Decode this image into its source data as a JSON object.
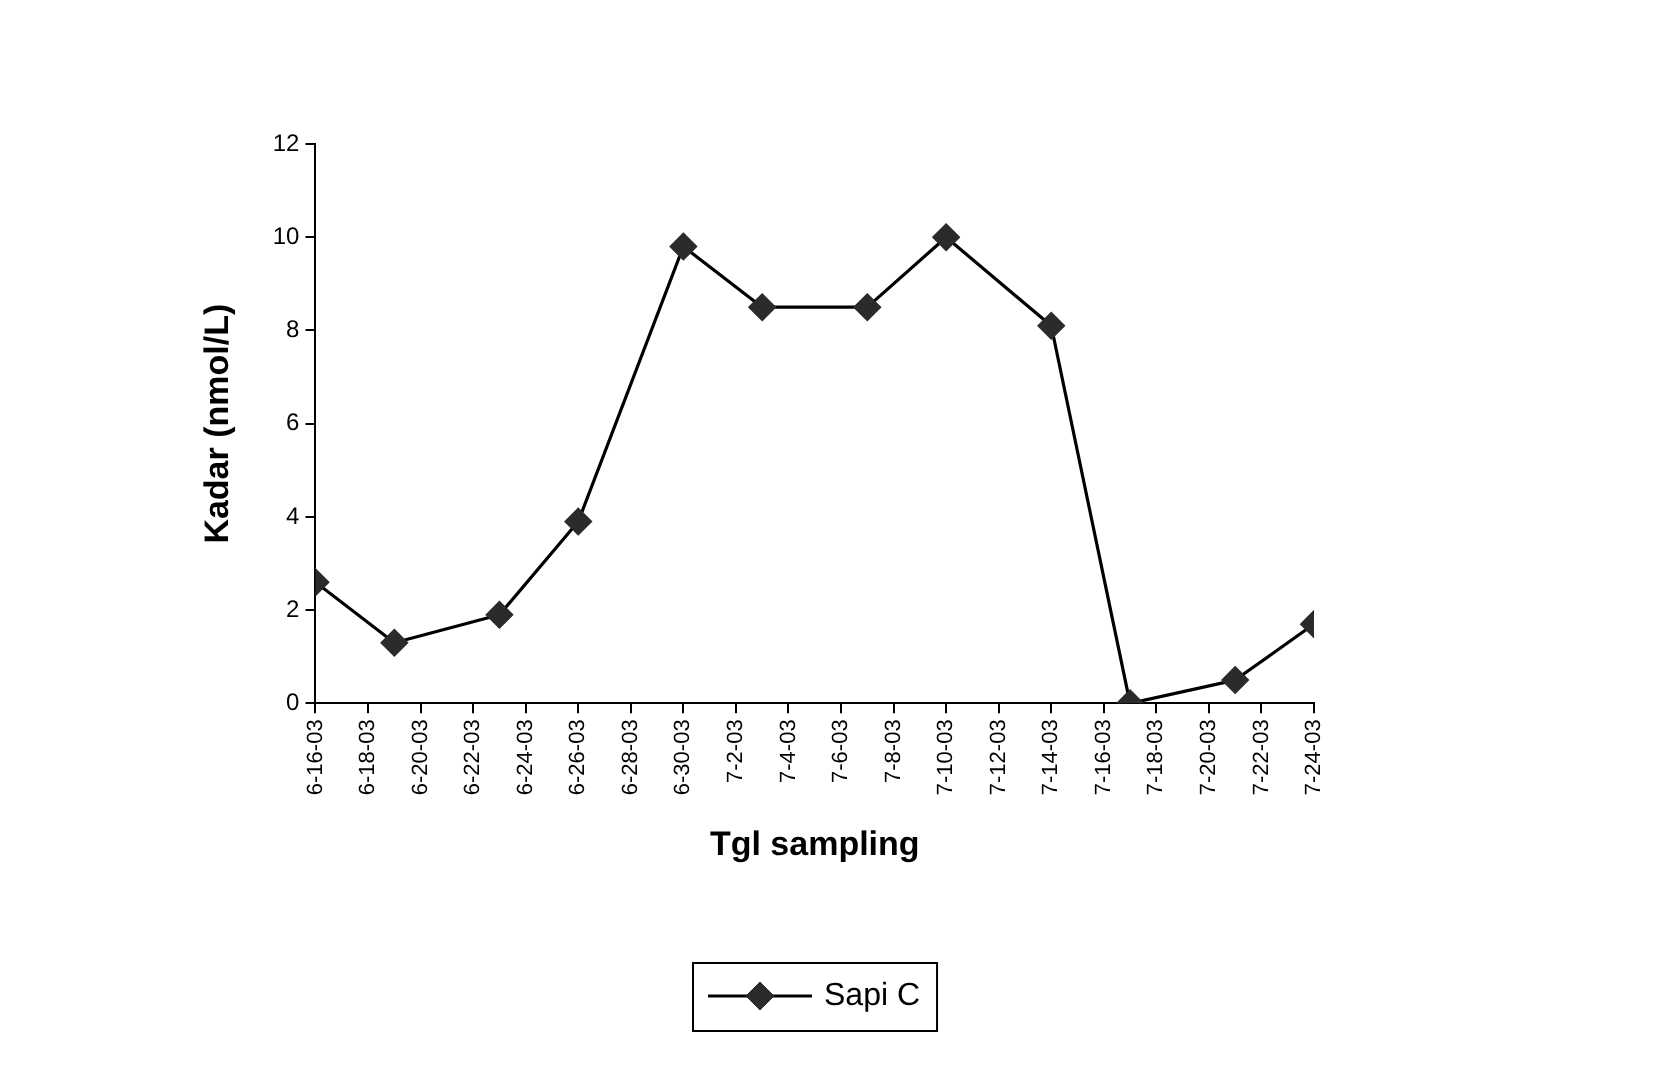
{
  "chart_data": {
    "type": "line",
    "xlabel": "Tgl sampling",
    "ylabel": "Kadar (nmol/L)",
    "x": [
      "--06-16",
      "--06-19",
      "--06-23",
      "--06-26",
      "--06-30",
      "--07-03",
      "--07-07",
      "--07-10",
      "--07-14",
      "--07-17",
      "--07-21",
      "--07-24"
    ],
    "series": [
      {
        "name": "Sapi C",
        "color": "#2b2b2b",
        "values": [
          2.6,
          1.3,
          1.9,
          3.9,
          9.8,
          8.5,
          8.5,
          10,
          8.1,
          0,
          0.5,
          1.7
        ]
      }
    ],
    "xlim": [
      "--06-16",
      "--07-24"
    ],
    "xticks": [
      {
        "value": "--06-16",
        "label": "6-16-03"
      },
      {
        "value": "--06-18",
        "label": "6-18-03"
      },
      {
        "value": "--06-20",
        "label": "6-20-03"
      },
      {
        "value": "--06-22",
        "label": "6-22-03"
      },
      {
        "value": "--06-24",
        "label": "6-24-03"
      },
      {
        "value": "--06-26",
        "label": "6-26-03"
      },
      {
        "value": "--06-28",
        "label": "6-28-03"
      },
      {
        "value": "--06-30",
        "label": "6-30-03"
      },
      {
        "value": "--07-02",
        "label": "7-2-03"
      },
      {
        "value": "--07-04",
        "label": "7-4-03"
      },
      {
        "value": "--07-06",
        "label": "7-6-03"
      },
      {
        "value": "--07-08",
        "label": "7-8-03"
      },
      {
        "value": "--07-10",
        "label": "7-10-03"
      },
      {
        "value": "--07-12",
        "label": "7-12-03"
      },
      {
        "value": "--07-14",
        "label": "7-14-03"
      },
      {
        "value": "--07-16",
        "label": "7-16-03"
      },
      {
        "value": "--07-18",
        "label": "7-18-03"
      },
      {
        "value": "--07-20",
        "label": "7-20-03"
      },
      {
        "value": "--07-22",
        "label": "7-22-03"
      },
      {
        "value": "--07-24",
        "label": "7-24-03"
      }
    ],
    "ylim": [
      0,
      12
    ],
    "yticks": [
      0,
      2,
      4,
      6,
      8,
      10,
      12
    ],
    "legend": "bottom",
    "marker": "diamond",
    "line_style": "solid"
  }
}
